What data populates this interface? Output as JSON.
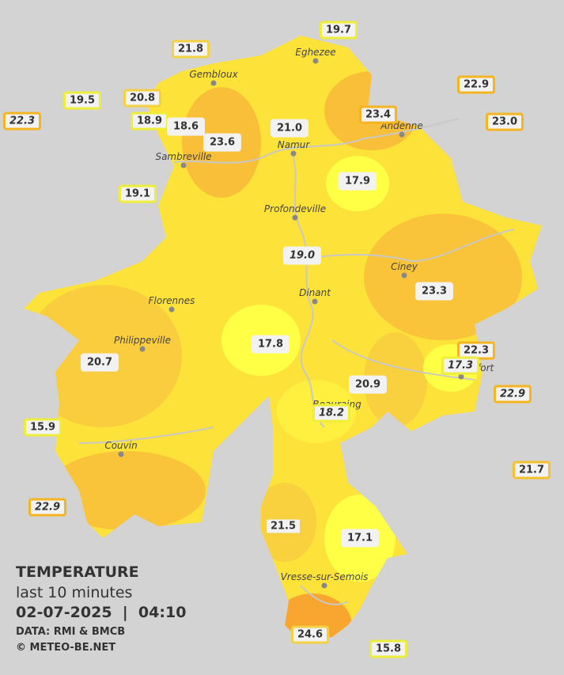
{
  "legend": {
    "title": "TEMPERATURE",
    "period": "last 10 minutes",
    "datetime": "02-07-2025  |  04:10",
    "source": "DATA: RMI & BMCB",
    "copyright": "© METEO-BE.NET"
  },
  "towns": [
    "Eghezee",
    "Gembloux",
    "Andenne",
    "Namur",
    "Sambreville",
    "Profondeville",
    "Ciney",
    "Dinant",
    "Florennes",
    "Philippeville",
    "Rochefort",
    "Beauraing",
    "Couvin",
    "Vresse-sur-Semois"
  ],
  "stations": [
    {
      "label": "19.7",
      "border": "#eded3a"
    },
    {
      "label": "21.8",
      "border": "#f5d040"
    },
    {
      "label": "22.9",
      "border": "#f5b520"
    },
    {
      "label": "19.5",
      "border": "#eded3a"
    },
    {
      "label": "20.8",
      "border": "#f5d040"
    },
    {
      "label": "22.3",
      "border": "#f5b520",
      "italic": true
    },
    {
      "label": "18.9",
      "border": "#eded3a"
    },
    {
      "label": "18.6"
    },
    {
      "label": "23.0",
      "border": "#f5b520"
    },
    {
      "label": "23.4",
      "border": "#f5b520"
    },
    {
      "label": "23.6"
    },
    {
      "label": "21.0"
    },
    {
      "label": "19.1",
      "border": "#eded3a"
    },
    {
      "label": "17.9"
    },
    {
      "label": "19.0",
      "italic": true
    },
    {
      "label": "23.3"
    },
    {
      "label": "17.8"
    },
    {
      "label": "22.3",
      "border": "#f5b520"
    },
    {
      "label": "17.3",
      "border": "#eded3a",
      "italic": true
    },
    {
      "label": "20.7"
    },
    {
      "label": "20.9"
    },
    {
      "label": "22.9",
      "border": "#f5b520",
      "italic": true
    },
    {
      "label": "18.2",
      "border": "#eded3a",
      "italic": true
    },
    {
      "label": "15.9",
      "border": "#eded3a"
    },
    {
      "label": "21.7",
      "border": "#f5c030"
    },
    {
      "label": "22.9",
      "border": "#f5b520",
      "italic": true
    },
    {
      "label": "21.5",
      "border": "#f5d040"
    },
    {
      "label": "17.1"
    },
    {
      "label": "24.6",
      "border": "#f5d040"
    },
    {
      "label": "15.8",
      "border": "#eded3a"
    }
  ]
}
